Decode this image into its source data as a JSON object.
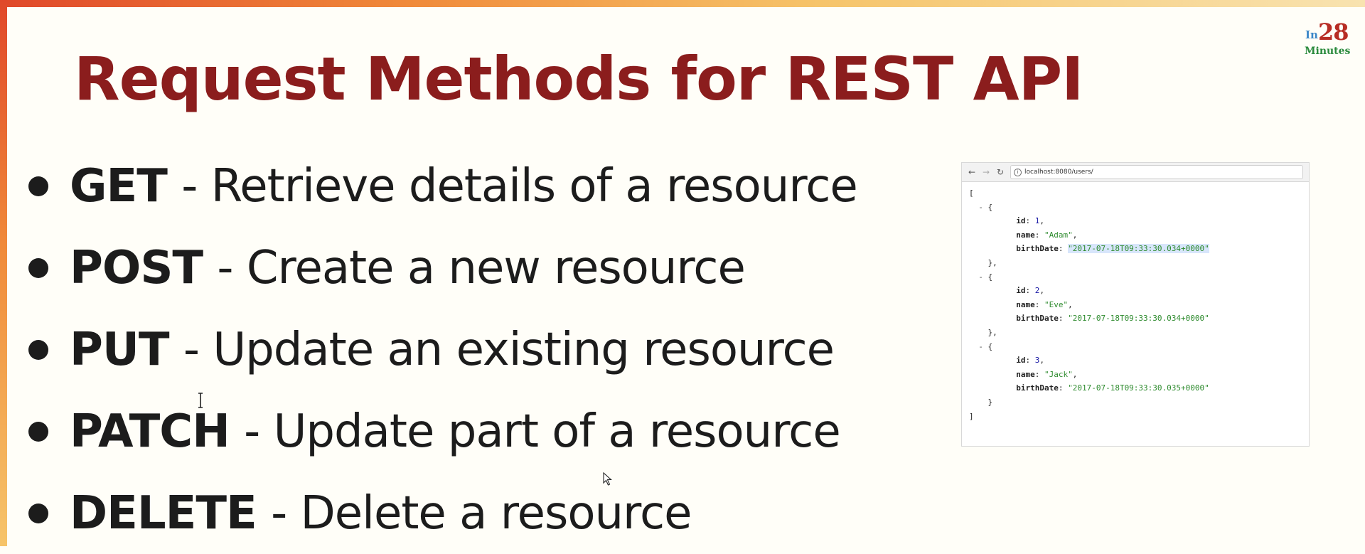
{
  "logo": {
    "prefix": "In",
    "number": "28",
    "suffix": "Minutes"
  },
  "title": "Request Methods for REST API",
  "methods": [
    {
      "name": "GET",
      "description": "- Retrieve details of a resource"
    },
    {
      "name": "POST",
      "description": "- Create a new resource"
    },
    {
      "name": "PUT",
      "description": "- Update an existing resource"
    },
    {
      "name": "PATCH",
      "description": "- Update part of a resource"
    },
    {
      "name": "DELETE",
      "description": "- Delete a resource"
    }
  ],
  "browser": {
    "url": "localhost:8080/users/",
    "nav_icons": [
      "back-arrow-icon",
      "forward-arrow-icon",
      "reload-icon",
      "info-icon"
    ],
    "users": [
      {
        "id": "1",
        "name": "\"Adam\"",
        "birthDate": "\"2017-07-18T09:33:30.034+0000\""
      },
      {
        "id": "2",
        "name": "\"Eve\"",
        "birthDate": "\"2017-07-18T09:33:30.034+0000\""
      },
      {
        "id": "3",
        "name": "\"Jack\"",
        "birthDate": "\"2017-07-18T09:33:30.035+0000\""
      }
    ]
  },
  "colors": {
    "title": "#8b1d1d",
    "text": "#1c1c1c",
    "background": "#fffef8",
    "json_string": "#2e8b2e",
    "json_number": "#1a1aa6",
    "accent_border": "#f08a3a"
  }
}
